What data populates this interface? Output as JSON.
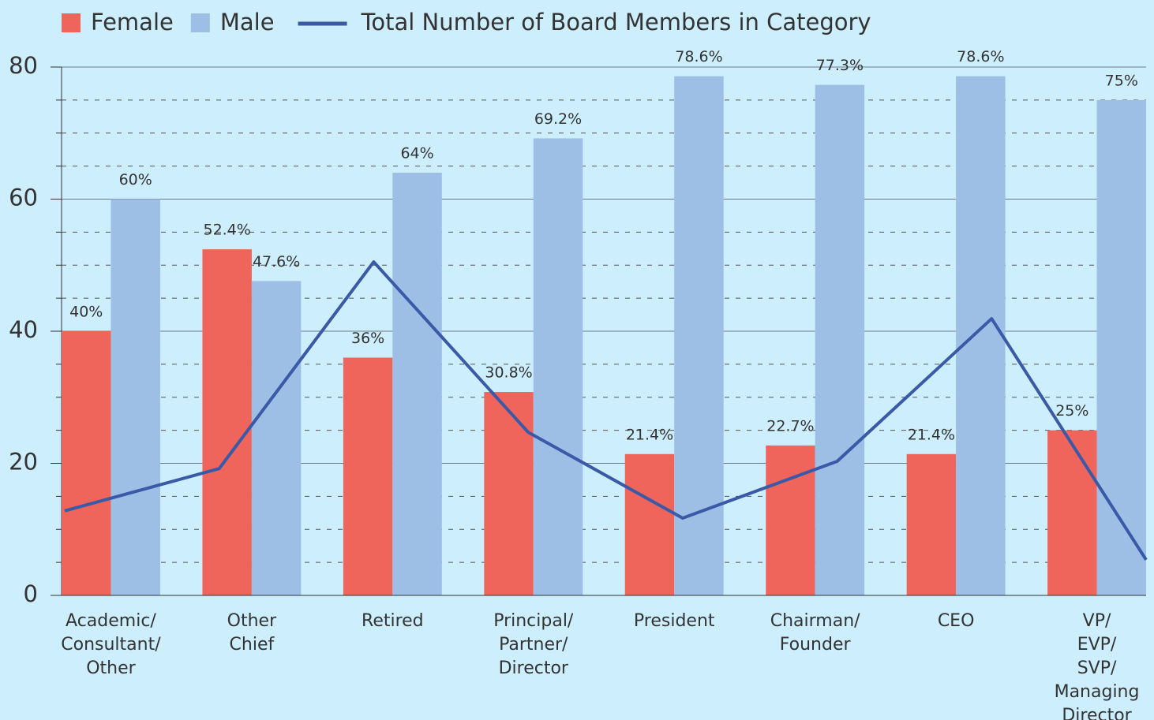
{
  "chart_data": {
    "type": "bar_line",
    "categories": [
      [
        "Academic/",
        "Consultant/",
        "Other"
      ],
      [
        "Other",
        "Chief"
      ],
      [
        "Retired"
      ],
      [
        "Principal/",
        "Partner/",
        "Director"
      ],
      [
        "President"
      ],
      [
        "Chairman/",
        "Founder"
      ],
      [
        "CEO"
      ],
      [
        "VP/",
        "EVP/",
        "SVP/",
        "Managing",
        "Director"
      ]
    ],
    "series": [
      {
        "name": "Female",
        "color": "#f0655b",
        "values": [
          40,
          52.4,
          36,
          30.8,
          21.4,
          22.7,
          21.4,
          25
        ],
        "value_labels": [
          "40%",
          "52.4%",
          "36%",
          "30.8%",
          "21.4%",
          "22.7%",
          "21.4%",
          "25%"
        ]
      },
      {
        "name": "Male",
        "color": "#9dbfe5",
        "values": [
          60,
          47.6,
          64,
          69.2,
          78.6,
          77.3,
          78.6,
          75
        ],
        "value_labels": [
          "60%",
          "47.6%",
          "64%",
          "69.2%",
          "78.6%",
          "77.3%",
          "78.6%",
          "75%"
        ]
      },
      {
        "name": "Total Number of Board Members in Category",
        "type": "line",
        "color": "#3a5aa8",
        "values": [
          12.8,
          19.2,
          50.5,
          24.7,
          11.7,
          20.3,
          41.9,
          5.4
        ]
      }
    ],
    "ylim": [
      0,
      80
    ],
    "yticks": [
      0,
      20,
      40,
      60,
      80
    ],
    "yminor_ticks": [
      5,
      10,
      15,
      25,
      30,
      35,
      45,
      50,
      55,
      65,
      70,
      75
    ],
    "grid": true,
    "legend": "top-left"
  }
}
